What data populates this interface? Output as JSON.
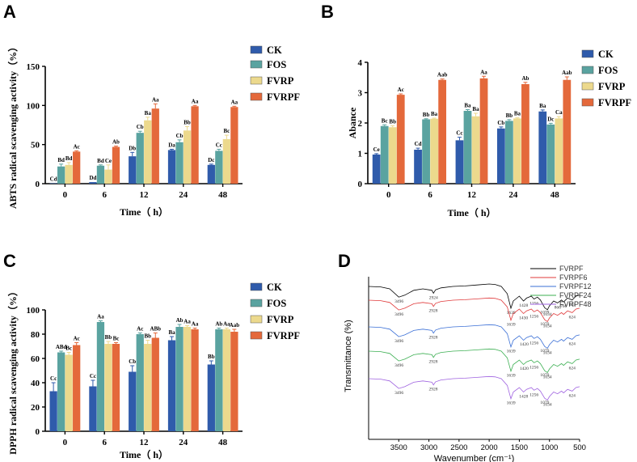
{
  "colors": {
    "CK": "#2f5bab",
    "FOS": "#5aa3a0",
    "FVRP": "#ecd98d",
    "FVRPF": "#e4693b",
    "FVRPF_line": "#000000",
    "FVRPF6_line": "#e0393a",
    "FVRPF12_line": "#3a6fd6",
    "FVRPF24_line": "#3caf52",
    "FVRPF48_line": "#9f62e0"
  },
  "chart_data": [
    {
      "panel": "A",
      "type": "bar",
      "ylabel": "ABTS radical scavenging activity（%）",
      "xlabel": "Time（ h）",
      "categories": [
        "0",
        "6",
        "12",
        "24",
        "48"
      ],
      "ylim": [
        0,
        150
      ],
      "yticks": [
        "0",
        "50",
        "100",
        "150"
      ],
      "series": [
        {
          "name": "CK",
          "values": [
            0.5,
            2,
            35,
            43,
            24
          ],
          "errors": [
            0,
            0,
            5,
            1,
            1
          ],
          "labels": [
            "Cd",
            "Dd",
            "Db",
            "Da",
            "Dc"
          ]
        },
        {
          "name": "FOS",
          "values": [
            22,
            23,
            65,
            53,
            42
          ],
          "errors": [
            3,
            1,
            2,
            3,
            2
          ],
          "labels": [
            "Bd",
            "Bd",
            "Cb",
            "Cb",
            "Cc"
          ]
        },
        {
          "name": "FVRP",
          "values": [
            24,
            18,
            81,
            68,
            57
          ],
          "errors": [
            3,
            6,
            4,
            5,
            5
          ],
          "labels": [
            "Bd",
            "Ce",
            "Ba",
            "Bb",
            "Bc"
          ]
        },
        {
          "name": "FVRPF",
          "values": [
            41,
            47,
            96,
            99,
            98
          ],
          "errors": [
            1,
            1,
            6,
            1,
            1
          ],
          "labels": [
            "Ac",
            "Ab",
            "Aa",
            "Aa",
            "Aa"
          ]
        }
      ]
    },
    {
      "panel": "B",
      "type": "bar",
      "ylabel": "Abance",
      "xlabel": "Time（ h）",
      "categories": [
        "0",
        "6",
        "12",
        "24",
        "48"
      ],
      "ylim": [
        0,
        4
      ],
      "yticks": [
        "0",
        "1",
        "2",
        "3",
        "4"
      ],
      "series": [
        {
          "name": "CK",
          "values": [
            0.96,
            1.12,
            1.43,
            1.82,
            2.38
          ],
          "errors": [
            0.03,
            0.05,
            0.1,
            0.05,
            0.05
          ],
          "labels": [
            "Ce",
            "Cd",
            "Cc",
            "Cb",
            "Ba"
          ]
        },
        {
          "name": "FOS",
          "values": [
            1.9,
            2.12,
            2.4,
            2.07,
            1.95
          ],
          "errors": [
            0.04,
            0.02,
            0.04,
            0.04,
            0.04
          ],
          "labels": [
            "Bc",
            "Bb",
            "Ba",
            "Bb",
            "Dc"
          ]
        },
        {
          "name": "FVRP",
          "values": [
            1.86,
            2.14,
            2.22,
            2.15,
            2.15
          ],
          "errors": [
            0.05,
            0.02,
            0.1,
            0.02,
            0.06
          ],
          "labels": [
            "Bb",
            "Ba",
            "Ba",
            "Ba",
            "Ca"
          ]
        },
        {
          "name": "FVRPF",
          "values": [
            2.93,
            3.42,
            3.47,
            3.28,
            3.42
          ],
          "errors": [
            0.03,
            0.03,
            0.07,
            0.06,
            0.1
          ],
          "labels": [
            "Ac",
            "Aab",
            "Aa",
            "Ab",
            "Aab"
          ]
        }
      ]
    },
    {
      "panel": "C",
      "type": "bar",
      "ylabel": "DPPH radical scavenging activity（%）",
      "xlabel": "Time（ h）",
      "categories": [
        "0",
        "6",
        "12",
        "24",
        "48"
      ],
      "ylim": [
        0,
        100
      ],
      "yticks": [
        "0",
        "20",
        "40",
        "60",
        "80",
        "100"
      ],
      "series": [
        {
          "name": "CK",
          "values": [
            33,
            37,
            49,
            75,
            55
          ],
          "errors": [
            7,
            5,
            5,
            3,
            3
          ],
          "labels": [
            "Cc",
            "Cc",
            "Cb",
            "Ba",
            "Bb"
          ]
        },
        {
          "name": "FOS",
          "values": [
            65,
            90,
            80,
            86,
            84
          ],
          "errors": [
            1,
            1,
            1,
            2,
            1
          ],
          "labels": [
            "ABd",
            "Aa",
            "Ac",
            "Ab",
            "Ab"
          ]
        },
        {
          "name": "FVRP",
          "values": [
            63,
            72,
            72,
            86,
            84
          ],
          "errors": [
            2,
            2,
            3,
            1,
            1
          ],
          "labels": [
            "Bc",
            "Bb",
            "Bb",
            "Aa",
            "Aa"
          ]
        },
        {
          "name": "FVRPF",
          "values": [
            71,
            72,
            77,
            84,
            82
          ],
          "errors": [
            2,
            1,
            4,
            1,
            2
          ],
          "labels": [
            "Ac",
            "Bc",
            "ABb",
            "Aa",
            "Aab"
          ]
        }
      ]
    },
    {
      "panel": "D",
      "type": "line",
      "ylabel": "Transmittance (%)",
      "xlabel": "Wavenumber (cm⁻¹)",
      "xlim": [
        4000,
        500
      ],
      "xticks": [
        "3500",
        "3000",
        "2500",
        "2000",
        "1500",
        "1000",
        "500"
      ],
      "series": [
        {
          "name": "FVRPF"
        },
        {
          "name": "FVRPF6"
        },
        {
          "name": "FVRPF12"
        },
        {
          "name": "FVRPF24"
        },
        {
          "name": "FVRPF48"
        }
      ],
      "peak_labels": [
        [
          "3496",
          "2924",
          "1639",
          "1428",
          "1256",
          "1079",
          "1034",
          "866",
          "766",
          "624"
        ],
        [
          "3496",
          "2928",
          "1639",
          "1430",
          "1256",
          "1079",
          "1034",
          "624"
        ],
        [
          "3496",
          "2928",
          "1639",
          "1420",
          "1256",
          "1079",
          "1034",
          "624"
        ],
        [
          "3496",
          "2928",
          "1639",
          "1420",
          "1256",
          "1079",
          "1034",
          "624"
        ],
        [
          "3496",
          "2928",
          "1639",
          "1428",
          "1256",
          "1079",
          "1034",
          "624"
        ]
      ]
    }
  ],
  "panels": {
    "A": "A",
    "B": "B",
    "C": "C",
    "D": "D"
  }
}
